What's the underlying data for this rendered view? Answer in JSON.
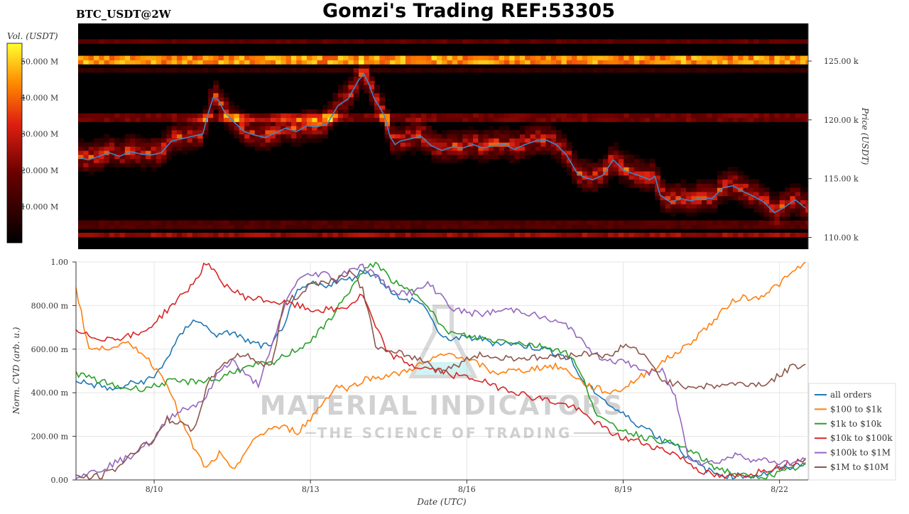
{
  "header": {
    "symbol": "BTC_USDT@2W",
    "title": "Gomzi's Trading REF:53305"
  },
  "watermark": {
    "name": "MATERIAL INDICATORS",
    "tagline": "THE SCIENCE OF TRADING"
  },
  "colors": {
    "all_orders": "#1f77b4",
    "usd100_1k": "#ff7f0e",
    "usd1k_10k": "#2ca02c",
    "usd10k_100k": "#d62728",
    "usd100k_1m": "#9467bd",
    "usd1m_10m": "#8c564b",
    "heatmap_low": "#000000",
    "heatmap_mid": "#d62010",
    "heatmap_high": "#ffff00",
    "price_line": "#3a88c8"
  },
  "chart_data": [
    {
      "type": "heatmap",
      "colorbar": {
        "label": "Vol. (USDT)",
        "ticks": [
          "10.000 M",
          "20.000 M",
          "30.000 M",
          "40.000 M",
          "50.000 M"
        ],
        "tick_values": [
          10,
          20,
          30,
          40,
          50
        ],
        "range": [
          0,
          55
        ]
      },
      "y_axis": {
        "label": "Price (USDT)",
        "ticks": [
          "110.00 k",
          "115.00 k",
          "120.00 k",
          "125.00 k"
        ],
        "tick_values": [
          110,
          115,
          120,
          125
        ],
        "range": [
          109.0,
          128.2
        ]
      },
      "x_range_days": [
        8.5,
        22.55
      ],
      "price_line": {
        "x": [
          8.5,
          8.7,
          8.9,
          9.1,
          9.3,
          9.5,
          9.7,
          9.9,
          10.1,
          10.3,
          10.5,
          10.7,
          10.9,
          11.0,
          11.1,
          11.2,
          11.3,
          11.5,
          11.7,
          11.9,
          12.1,
          12.3,
          12.5,
          12.7,
          12.9,
          13.1,
          13.3,
          13.5,
          13.7,
          13.9,
          14.0,
          14.1,
          14.2,
          14.3,
          14.4,
          14.5,
          14.6,
          14.7,
          14.9,
          15.1,
          15.3,
          15.5,
          15.7,
          15.9,
          16.1,
          16.3,
          16.5,
          16.7,
          16.9,
          17.1,
          17.3,
          17.5,
          17.7,
          17.9,
          18.1,
          18.2,
          18.4,
          18.6,
          18.8,
          19.0,
          19.2,
          19.4,
          19.5,
          19.6,
          19.7,
          19.9,
          20.1,
          20.3,
          20.5,
          20.7,
          20.9,
          21.1,
          21.3,
          21.5,
          21.7,
          21.9,
          22.1,
          22.3,
          22.5
        ],
        "y": [
          116.8,
          116.6,
          116.9,
          117.2,
          116.9,
          117.3,
          117.1,
          117.0,
          117.2,
          118.2,
          118.4,
          118.6,
          118.8,
          120.5,
          121.9,
          121.7,
          120.8,
          119.8,
          119.0,
          118.7,
          118.5,
          118.9,
          119.3,
          119.0,
          119.5,
          119.4,
          119.7,
          121.2,
          121.8,
          123.4,
          123.9,
          123.0,
          121.8,
          121.1,
          120.3,
          118.6,
          117.9,
          118.2,
          118.4,
          118.6,
          117.8,
          117.4,
          117.7,
          117.6,
          117.9,
          117.6,
          117.8,
          117.9,
          117.5,
          117.9,
          118.2,
          118.3,
          117.9,
          117.0,
          115.5,
          115.2,
          114.9,
          115.3,
          116.6,
          115.7,
          115.4,
          115.1,
          114.9,
          115.2,
          113.6,
          113.0,
          113.3,
          113.1,
          113.4,
          113.3,
          114.2,
          114.4,
          113.9,
          113.5,
          113.0,
          112.1,
          112.6,
          113.2,
          112.5
        ]
      },
      "bands": [
        {
          "price": 125.0,
          "intensity": 0.9
        },
        {
          "price": 126.5,
          "intensity": 0.35
        },
        {
          "price": 124.0,
          "intensity": 0.2
        },
        {
          "price": 110.0,
          "intensity": 0.5
        },
        {
          "price": 111.0,
          "intensity": 0.3
        },
        {
          "price": 120.0,
          "intensity": 0.4
        }
      ]
    },
    {
      "type": "line",
      "xlabel": "Date (UTC)",
      "ylabel": "Norm. CVD (arb. u.)",
      "ylim": [
        0,
        1
      ],
      "xlim": [
        8.5,
        22.55
      ],
      "x_ticks": [
        "8/10",
        "8/13",
        "8/16",
        "8/19",
        "8/22"
      ],
      "x_tick_values": [
        10,
        13,
        16,
        19,
        22
      ],
      "y_ticks": [
        "0.00",
        "200.00 m",
        "400.00 m",
        "600.00 m",
        "800.00 m",
        "1.00"
      ],
      "y_tick_values": [
        0,
        0.2,
        0.4,
        0.6,
        0.8,
        1.0
      ],
      "legend_position": "bottom-right",
      "x": [
        8.5,
        8.75,
        9.0,
        9.25,
        9.5,
        9.75,
        10.0,
        10.25,
        10.5,
        10.75,
        11.0,
        11.25,
        11.5,
        11.75,
        12.0,
        12.25,
        12.5,
        12.75,
        13.0,
        13.25,
        13.5,
        13.75,
        14.0,
        14.25,
        14.5,
        14.75,
        15.0,
        15.25,
        15.5,
        15.75,
        16.0,
        16.25,
        16.5,
        16.75,
        17.0,
        17.25,
        17.5,
        17.75,
        18.0,
        18.25,
        18.5,
        18.75,
        19.0,
        19.25,
        19.5,
        19.75,
        20.0,
        20.25,
        20.5,
        20.75,
        21.0,
        21.25,
        21.5,
        21.75,
        22.0,
        22.25,
        22.5
      ],
      "series": [
        {
          "name": "all orders",
          "values": [
            0.46,
            0.44,
            0.43,
            0.41,
            0.44,
            0.45,
            0.47,
            0.56,
            0.66,
            0.74,
            0.7,
            0.66,
            0.68,
            0.64,
            0.62,
            0.61,
            0.72,
            0.86,
            0.9,
            0.89,
            0.91,
            0.92,
            0.96,
            0.94,
            0.88,
            0.82,
            0.83,
            0.78,
            0.65,
            0.65,
            0.65,
            0.65,
            0.63,
            0.63,
            0.62,
            0.61,
            0.6,
            0.58,
            0.55,
            0.44,
            0.4,
            0.34,
            0.3,
            0.26,
            0.23,
            0.18,
            0.17,
            0.1,
            0.06,
            0.03,
            0.02,
            0.02,
            0.02,
            0.03,
            0.05,
            0.06,
            0.08
          ]
        },
        {
          "name": "$100 to $1k",
          "values": [
            0.88,
            0.6,
            0.6,
            0.62,
            0.62,
            0.59,
            0.52,
            0.45,
            0.28,
            0.15,
            0.05,
            0.12,
            0.04,
            0.13,
            0.2,
            0.24,
            0.24,
            0.22,
            0.28,
            0.36,
            0.43,
            0.42,
            0.46,
            0.47,
            0.48,
            0.49,
            0.52,
            0.54,
            0.57,
            0.58,
            0.55,
            0.53,
            0.49,
            0.5,
            0.5,
            0.51,
            0.52,
            0.52,
            0.49,
            0.44,
            0.42,
            0.4,
            0.42,
            0.46,
            0.5,
            0.54,
            0.58,
            0.62,
            0.68,
            0.73,
            0.8,
            0.84,
            0.83,
            0.86,
            0.9,
            0.95,
            1.0
          ]
        },
        {
          "name": "$1k to $10k",
          "values": [
            0.49,
            0.47,
            0.45,
            0.43,
            0.42,
            0.42,
            0.43,
            0.45,
            0.45,
            0.45,
            0.46,
            0.46,
            0.5,
            0.51,
            0.53,
            0.53,
            0.57,
            0.6,
            0.64,
            0.7,
            0.78,
            0.87,
            0.95,
            1.0,
            0.93,
            0.88,
            0.86,
            0.81,
            0.7,
            0.67,
            0.66,
            0.65,
            0.64,
            0.64,
            0.63,
            0.62,
            0.61,
            0.6,
            0.57,
            0.45,
            0.3,
            0.25,
            0.23,
            0.21,
            0.19,
            0.18,
            0.16,
            0.14,
            0.1,
            0.06,
            0.04,
            0.02,
            0.01,
            0.02,
            0.03,
            0.05,
            0.07
          ]
        },
        {
          "name": "$10k to $100k",
          "values": [
            0.68,
            0.66,
            0.65,
            0.65,
            0.66,
            0.67,
            0.72,
            0.78,
            0.84,
            0.9,
            1.0,
            0.92,
            0.87,
            0.84,
            0.83,
            0.82,
            0.81,
            0.8,
            0.78,
            0.78,
            0.78,
            0.8,
            0.85,
            0.7,
            0.58,
            0.55,
            0.52,
            0.51,
            0.5,
            0.48,
            0.47,
            0.46,
            0.43,
            0.42,
            0.4,
            0.38,
            0.37,
            0.35,
            0.34,
            0.3,
            0.26,
            0.22,
            0.19,
            0.18,
            0.16,
            0.14,
            0.12,
            0.08,
            0.04,
            0.02,
            0.01,
            0.02,
            0.03,
            0.05,
            0.06,
            0.08,
            0.1
          ]
        },
        {
          "name": "$100k to $1M",
          "values": [
            0.02,
            0.03,
            0.05,
            0.08,
            0.1,
            0.15,
            0.18,
            0.28,
            0.32,
            0.34,
            0.38,
            0.5,
            0.55,
            0.48,
            0.44,
            0.6,
            0.8,
            0.92,
            0.94,
            0.95,
            0.92,
            0.97,
            0.98,
            0.94,
            0.88,
            0.86,
            0.86,
            0.9,
            0.85,
            0.78,
            0.77,
            0.76,
            0.77,
            0.78,
            0.78,
            0.76,
            0.74,
            0.72,
            0.7,
            0.62,
            0.57,
            0.55,
            0.54,
            0.52,
            0.49,
            0.5,
            0.38,
            0.11,
            0.08,
            0.08,
            0.1,
            0.12,
            0.09,
            0.09,
            0.08,
            0.08,
            0.09
          ]
        },
        {
          "name": "$1M to $10M",
          "values": [
            0.02,
            0.01,
            0.02,
            0.05,
            0.1,
            0.16,
            0.18,
            0.28,
            0.26,
            0.22,
            0.42,
            0.52,
            0.56,
            0.58,
            0.54,
            0.52,
            0.82,
            0.84,
            0.9,
            0.91,
            0.92,
            0.96,
            0.88,
            0.62,
            0.58,
            0.58,
            0.56,
            0.54,
            0.5,
            0.52,
            0.55,
            0.58,
            0.56,
            0.56,
            0.56,
            0.56,
            0.56,
            0.57,
            0.57,
            0.58,
            0.58,
            0.56,
            0.62,
            0.6,
            0.54,
            0.46,
            0.44,
            0.43,
            0.43,
            0.43,
            0.44,
            0.44,
            0.44,
            0.44,
            0.48,
            0.52,
            0.53
          ]
        }
      ]
    }
  ]
}
